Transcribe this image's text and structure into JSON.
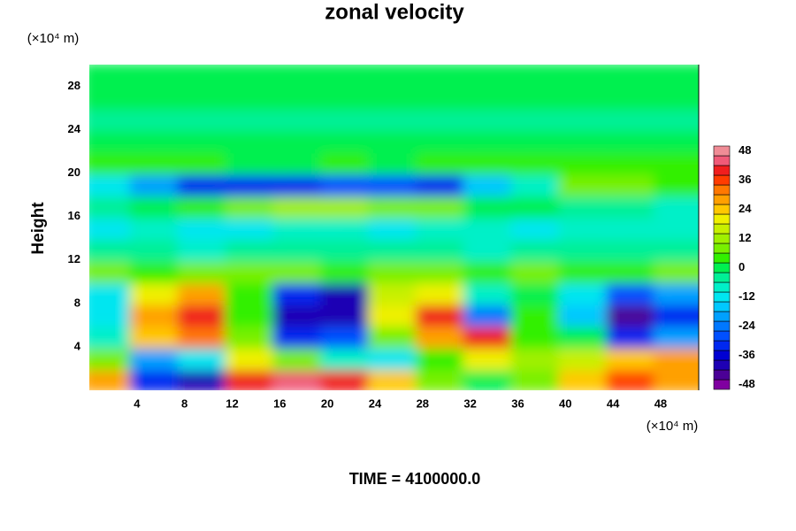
{
  "chart_data": {
    "type": "contour",
    "title": "zonal velocity",
    "ylabel": "Height",
    "x_unit": "(×10⁴ m)",
    "y_unit": "(×10⁴ m)",
    "footer": "TIME = 4100000.0",
    "xlim": [
      0,
      51.2
    ],
    "ylim": [
      0,
      30
    ],
    "xticks": [
      4,
      8,
      12,
      16,
      20,
      24,
      28,
      32,
      36,
      40,
      44,
      48
    ],
    "yticks": [
      4,
      8,
      12,
      16,
      20,
      24,
      28
    ],
    "x": [
      2,
      6,
      10,
      14,
      18,
      22,
      26,
      30,
      34,
      38,
      42,
      46,
      50
    ],
    "y": [
      1,
      3,
      5,
      7,
      9,
      11,
      13,
      15,
      17,
      19,
      21,
      23,
      25,
      27,
      29
    ],
    "cell_width": 4,
    "cell_height": 2,
    "z": [
      [
        30,
        -30,
        -40,
        40,
        46,
        40,
        24,
        10,
        2,
        10,
        24,
        36,
        30
      ],
      [
        10,
        -20,
        -10,
        20,
        10,
        -6,
        -10,
        6,
        20,
        14,
        18,
        24,
        30
      ],
      [
        -8,
        26,
        34,
        10,
        -30,
        -26,
        8,
        30,
        40,
        6,
        0,
        -30,
        -20
      ],
      [
        -12,
        30,
        40,
        6,
        -40,
        -38,
        20,
        40,
        -24,
        6,
        -14,
        -42,
        -30
      ],
      [
        -10,
        20,
        30,
        4,
        -30,
        -40,
        18,
        20,
        -6,
        2,
        -10,
        -26,
        -20
      ],
      [
        8,
        6,
        8,
        10,
        8,
        6,
        10,
        8,
        6,
        8,
        6,
        6,
        8
      ],
      [
        -2,
        -4,
        -6,
        -4,
        -2,
        -4,
        -2,
        -4,
        -6,
        -4,
        -2,
        -4,
        -4
      ],
      [
        -10,
        -8,
        -12,
        -10,
        -8,
        -6,
        -10,
        -8,
        -6,
        -10,
        -8,
        -6,
        -8
      ],
      [
        -4,
        0,
        4,
        10,
        14,
        12,
        10,
        8,
        2,
        0,
        -2,
        -4,
        -6
      ],
      [
        -10,
        -20,
        -30,
        -32,
        -30,
        -28,
        -26,
        -30,
        -16,
        -6,
        10,
        8,
        6
      ],
      [
        6,
        4,
        4,
        2,
        2,
        4,
        2,
        4,
        4,
        6,
        6,
        6,
        4
      ],
      [
        0,
        0,
        0,
        0,
        0,
        0,
        0,
        0,
        0,
        0,
        0,
        0,
        0
      ],
      [
        -2,
        -2,
        -2,
        -2,
        -2,
        -2,
        -2,
        -2,
        -2,
        -2,
        -2,
        -2,
        -2
      ],
      [
        0,
        0,
        0,
        0,
        0,
        0,
        0,
        0,
        0,
        0,
        0,
        0,
        0
      ],
      [
        0,
        0,
        0,
        0,
        0,
        0,
        0,
        0,
        0,
        0,
        0,
        0,
        0
      ]
    ],
    "levels": [
      -48,
      -44,
      -40,
      -36,
      -32,
      -28,
      -24,
      -20,
      -16,
      -12,
      -8,
      -4,
      0,
      4,
      8,
      12,
      16,
      20,
      24,
      28,
      32,
      36,
      40,
      44,
      48
    ],
    "colors": [
      "#8000a0",
      "#4b0096",
      "#1e00b4",
      "#0000d2",
      "#0028f0",
      "#0050ff",
      "#0078ff",
      "#00a0ff",
      "#00c8ff",
      "#00e6f0",
      "#00f0c8",
      "#00f096",
      "#00f050",
      "#32f000",
      "#78f000",
      "#a0f000",
      "#c8f000",
      "#f0f000",
      "#ffc800",
      "#ffa000",
      "#ff7800",
      "#ff3c00",
      "#f01e1e",
      "#f05a78",
      "#f08c96"
    ],
    "colorbar_ticks": [
      -48,
      -36,
      -24,
      -12,
      0,
      12,
      24,
      36,
      48
    ]
  }
}
